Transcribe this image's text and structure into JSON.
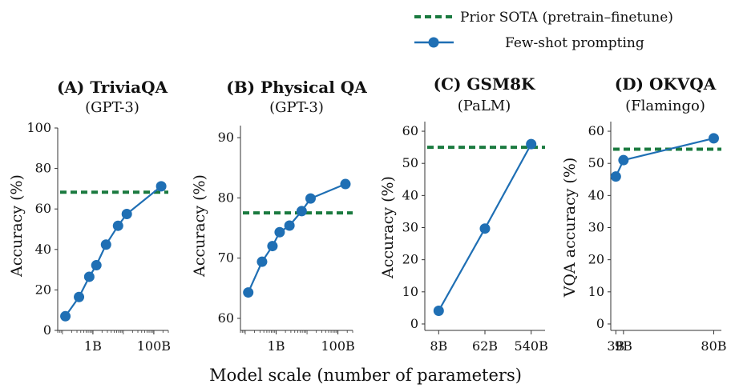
{
  "legend": {
    "sota_label": "Prior SOTA (pretrain–finetune)",
    "fewshot_label": "Few-shot prompting"
  },
  "colors": {
    "sota": "#1a7a3f",
    "fewshot": "#1f6fb4"
  },
  "common_xlabel": "Model scale (number of parameters)",
  "chart_data": [
    {
      "type": "line",
      "title": "(A) TriviaQA",
      "subtitle": "(GPT-3)",
      "ylabel": "Accuracy (%)",
      "xscale": "log",
      "ylim": [
        0,
        100
      ],
      "yticks": [
        0,
        20,
        40,
        60,
        80,
        100
      ],
      "xticks": [
        {
          "label": "1B",
          "x": 1
        },
        {
          "label": "100B",
          "x": 100
        }
      ],
      "xlim": [
        0.07,
        300
      ],
      "sota": 68.3,
      "series": [
        {
          "x": [
            0.125,
            0.35,
            0.76,
            1.3,
            2.7,
            6.7,
            13,
            175
          ],
          "y": [
            7,
            16.5,
            26.5,
            32.2,
            42.4,
            51.7,
            57.5,
            71.2
          ]
        }
      ]
    },
    {
      "type": "line",
      "title": "(B) Physical QA",
      "subtitle": "(GPT-3)",
      "ylabel": "Accuracy (%)",
      "xscale": "log",
      "ylim": [
        58,
        92
      ],
      "yticks": [
        60,
        70,
        80,
        90
      ],
      "xticks": [
        {
          "label": "1B",
          "x": 1
        },
        {
          "label": "100B",
          "x": 100
        }
      ],
      "xlim": [
        0.07,
        300
      ],
      "sota": 77.5,
      "series": [
        {
          "x": [
            0.125,
            0.35,
            0.76,
            1.3,
            2.7,
            6.7,
            13,
            175
          ],
          "y": [
            64.3,
            69.4,
            72.0,
            74.3,
            75.4,
            77.8,
            79.9,
            82.3
          ]
        }
      ]
    },
    {
      "type": "line",
      "title": "(C) GSM8K",
      "subtitle": "(PaLM)",
      "ylabel": "Accuracy (%)",
      "xscale": "categorical",
      "ylim": [
        -2,
        63
      ],
      "yticks": [
        0,
        10,
        20,
        30,
        40,
        50,
        60
      ],
      "xticks": [
        {
          "label": "8B",
          "x": 0
        },
        {
          "label": "62B",
          "x": 1
        },
        {
          "label": "540B",
          "x": 2
        }
      ],
      "xlim": [
        -0.3,
        2.3
      ],
      "sota": 55,
      "series": [
        {
          "x": [
            0,
            1,
            2
          ],
          "y": [
            4.1,
            29.7,
            56.0
          ]
        }
      ]
    },
    {
      "type": "line",
      "title": "(D) OKVQA",
      "subtitle": "(Flamingo)",
      "ylabel": "VQA accuracy (%)",
      "xscale": "linear",
      "ylim": [
        -2,
        63
      ],
      "yticks": [
        0,
        10,
        20,
        30,
        40,
        50,
        60
      ],
      "xticks": [
        {
          "label": "3B",
          "x": 3
        },
        {
          "label": "9B",
          "x": 9
        },
        {
          "label": "80B",
          "x": 80
        }
      ],
      "xlim": [
        -1,
        86
      ],
      "sota": 54.4,
      "series": [
        {
          "x": [
            3,
            9,
            80
          ],
          "y": [
            45.9,
            51.0,
            57.8
          ]
        }
      ]
    }
  ]
}
